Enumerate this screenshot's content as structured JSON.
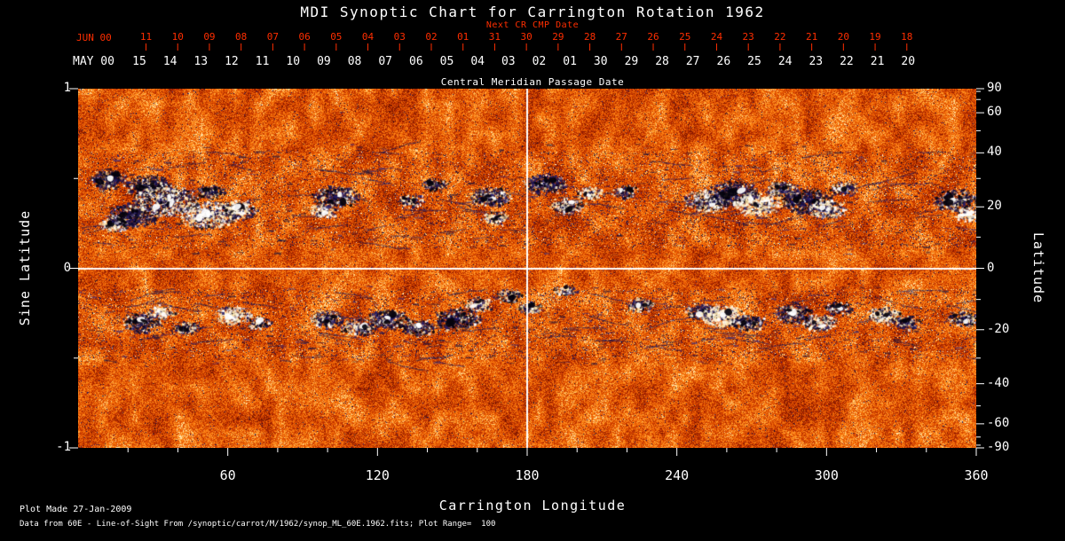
{
  "title": "MDI Synoptic Chart for Carrington Rotation 1962",
  "colors": {
    "background": "#000000",
    "foreground": "#ffffff",
    "next_cr_axis": "#ff2e00"
  },
  "top_axis": {
    "label": "Next CR CMP Date",
    "era_label": "JUN 00",
    "tick_labels": [
      "11",
      "10",
      "09",
      "08",
      "07",
      "06",
      "05",
      "04",
      "03",
      "02",
      "01",
      "31",
      "30",
      "29",
      "28",
      "27",
      "26",
      "25",
      "24",
      "23",
      "22",
      "21",
      "20",
      "19",
      "18"
    ]
  },
  "cmp_axis": {
    "era_label": "MAY 00",
    "title": "Central Meridian Passage Date",
    "tick_labels": [
      "15",
      "14",
      "13",
      "12",
      "11",
      "10",
      "09",
      "08",
      "07",
      "06",
      "05",
      "04",
      "03",
      "02",
      "01",
      "30",
      "29",
      "28",
      "27",
      "26",
      "25",
      "24",
      "23",
      "22",
      "21",
      "20"
    ]
  },
  "x_axis": {
    "title": "Carrington Longitude",
    "tick_labels": [
      "60",
      "120",
      "180",
      "240",
      "300",
      "360"
    ],
    "range_deg": [
      0,
      360
    ]
  },
  "y_axis_left": {
    "title": "Sine Latitude",
    "tick_labels": [
      "1",
      "0",
      "-1"
    ],
    "range": [
      -1,
      1
    ]
  },
  "y_axis_right": {
    "title": "Latitude",
    "major_tick_labels": [
      "90",
      "60",
      "40",
      "20",
      "0",
      "-20",
      "-40",
      "-60",
      "-90"
    ],
    "minor_tick_step_deg": 10
  },
  "reference_lines": {
    "equator_sine_latitude": 0,
    "central_meridian_longitude_deg": 180
  },
  "footer": {
    "line1": "Plot Made 27-Jan-2009",
    "line2": "Data from 60E - Line-of-Sight From /synoptic/carrot/M/1962/synop_ML_60E.1962.fits; Plot Range=  100"
  },
  "chart_data": {
    "type": "heatmap",
    "title": "MDI Synoptic Chart for Carrington Rotation 1962",
    "description": "Full-Sun line-of-sight synoptic magnetogram for Carrington rotation 1962. Orange/red speckled background (quiet Sun noise) with bipolar active regions: black/dark-navy = negative polarity, white = positive polarity, concentrated in two activity belts near sine latitude +0.4 and -0.27. White crosshair lines mark the equator and 180 deg longitude.",
    "xlabel": "Carrington Longitude",
    "ylabel_left": "Sine Latitude",
    "ylabel_right": "Latitude",
    "x_range_deg": [
      0,
      360
    ],
    "y_range_sine_lat": [
      -1,
      1
    ],
    "plot_range_gauss": 100,
    "palette_stops": [
      "#5a0c00",
      "#b22800",
      "#e85800",
      "#ff8818",
      "#ffb850",
      "#ffe8b0"
    ],
    "palette_positions": [
      0,
      0.28,
      0.55,
      0.78,
      0.92,
      1
    ],
    "negative_shades": [
      "#04020c",
      "#120c3a",
      "#261c66"
    ],
    "positive_shades": [
      "#ffffff",
      "#fff6da",
      "#ffe6a8"
    ],
    "speckle_color": "#141048",
    "active_regions": [
      {
        "lon": 12,
        "slat": 0.5,
        "r": 13,
        "dark": 0.8
      },
      {
        "lon": 15,
        "slat": 0.25,
        "r": 10,
        "dark": 0.3
      },
      {
        "lon": 22,
        "slat": 0.3,
        "r": 17,
        "dark": 0.85
      },
      {
        "lon": 28,
        "slat": 0.46,
        "r": 15,
        "dark": 0.78
      },
      {
        "lon": 35,
        "slat": 0.38,
        "r": 21,
        "dark": 0.5
      },
      {
        "lon": 52,
        "slat": 0.3,
        "r": 19,
        "dark": 0.42
      },
      {
        "lon": 53,
        "slat": 0.43,
        "r": 9,
        "dark": 0.88
      },
      {
        "lon": 64,
        "slat": 0.33,
        "r": 13,
        "dark": 0.5
      },
      {
        "lon": 98,
        "slat": 0.32,
        "r": 9,
        "dark": 0.22
      },
      {
        "lon": 103,
        "slat": 0.4,
        "r": 15,
        "dark": 0.8
      },
      {
        "lon": 133,
        "slat": 0.38,
        "r": 8,
        "dark": 0.6
      },
      {
        "lon": 143,
        "slat": 0.47,
        "r": 8,
        "dark": 0.72
      },
      {
        "lon": 165,
        "slat": 0.4,
        "r": 13,
        "dark": 0.7
      },
      {
        "lon": 167,
        "slat": 0.28,
        "r": 9,
        "dark": 0.3
      },
      {
        "lon": 187,
        "slat": 0.47,
        "r": 14,
        "dark": 0.8
      },
      {
        "lon": 196,
        "slat": 0.35,
        "r": 11,
        "dark": 0.5
      },
      {
        "lon": 205,
        "slat": 0.42,
        "r": 9,
        "dark": 0.3
      },
      {
        "lon": 219,
        "slat": 0.43,
        "r": 8,
        "dark": 0.7
      },
      {
        "lon": 252,
        "slat": 0.38,
        "r": 15,
        "dark": 0.55
      },
      {
        "lon": 262,
        "slat": 0.42,
        "r": 17,
        "dark": 0.85
      },
      {
        "lon": 272,
        "slat": 0.36,
        "r": 15,
        "dark": 0.25
      },
      {
        "lon": 282,
        "slat": 0.44,
        "r": 11,
        "dark": 0.6
      },
      {
        "lon": 292,
        "slat": 0.38,
        "r": 17,
        "dark": 0.85
      },
      {
        "lon": 300,
        "slat": 0.33,
        "r": 13,
        "dark": 0.3
      },
      {
        "lon": 307,
        "slat": 0.45,
        "r": 9,
        "dark": 0.7
      },
      {
        "lon": 352,
        "slat": 0.38,
        "r": 15,
        "dark": 0.75
      },
      {
        "lon": 357,
        "slat": 0.3,
        "r": 9,
        "dark": 0.22
      },
      {
        "lon": 25,
        "slat": -0.3,
        "r": 13,
        "dark": 0.8
      },
      {
        "lon": 33,
        "slat": -0.24,
        "r": 9,
        "dark": 0.28
      },
      {
        "lon": 43,
        "slat": -0.33,
        "r": 9,
        "dark": 0.7
      },
      {
        "lon": 62,
        "slat": -0.26,
        "r": 12,
        "dark": 0.25
      },
      {
        "lon": 72,
        "slat": -0.3,
        "r": 8,
        "dark": 0.6
      },
      {
        "lon": 100,
        "slat": -0.28,
        "r": 11,
        "dark": 0.7
      },
      {
        "lon": 112,
        "slat": -0.33,
        "r": 11,
        "dark": 0.6
      },
      {
        "lon": 124,
        "slat": -0.28,
        "r": 13,
        "dark": 0.8
      },
      {
        "lon": 136,
        "slat": -0.33,
        "r": 11,
        "dark": 0.7
      },
      {
        "lon": 152,
        "slat": -0.28,
        "r": 15,
        "dark": 0.8
      },
      {
        "lon": 160,
        "slat": -0.2,
        "r": 9,
        "dark": 0.4
      },
      {
        "lon": 172,
        "slat": -0.15,
        "r": 9,
        "dark": 0.7
      },
      {
        "lon": 181,
        "slat": -0.22,
        "r": 8,
        "dark": 0.6
      },
      {
        "lon": 195,
        "slat": -0.12,
        "r": 7,
        "dark": 0.6
      },
      {
        "lon": 225,
        "slat": -0.2,
        "r": 9,
        "dark": 0.6
      },
      {
        "lon": 250,
        "slat": -0.24,
        "r": 11,
        "dark": 0.8
      },
      {
        "lon": 258,
        "slat": -0.26,
        "r": 15,
        "dark": 0.15
      },
      {
        "lon": 268,
        "slat": -0.3,
        "r": 11,
        "dark": 0.75
      },
      {
        "lon": 287,
        "slat": -0.25,
        "r": 13,
        "dark": 0.75
      },
      {
        "lon": 297,
        "slat": -0.3,
        "r": 11,
        "dark": 0.45
      },
      {
        "lon": 305,
        "slat": -0.22,
        "r": 9,
        "dark": 0.7
      },
      {
        "lon": 323,
        "slat": -0.26,
        "r": 11,
        "dark": 0.35
      },
      {
        "lon": 332,
        "slat": -0.3,
        "r": 9,
        "dark": 0.7
      },
      {
        "lon": 354,
        "slat": -0.28,
        "r": 10,
        "dark": 0.75
      }
    ]
  }
}
